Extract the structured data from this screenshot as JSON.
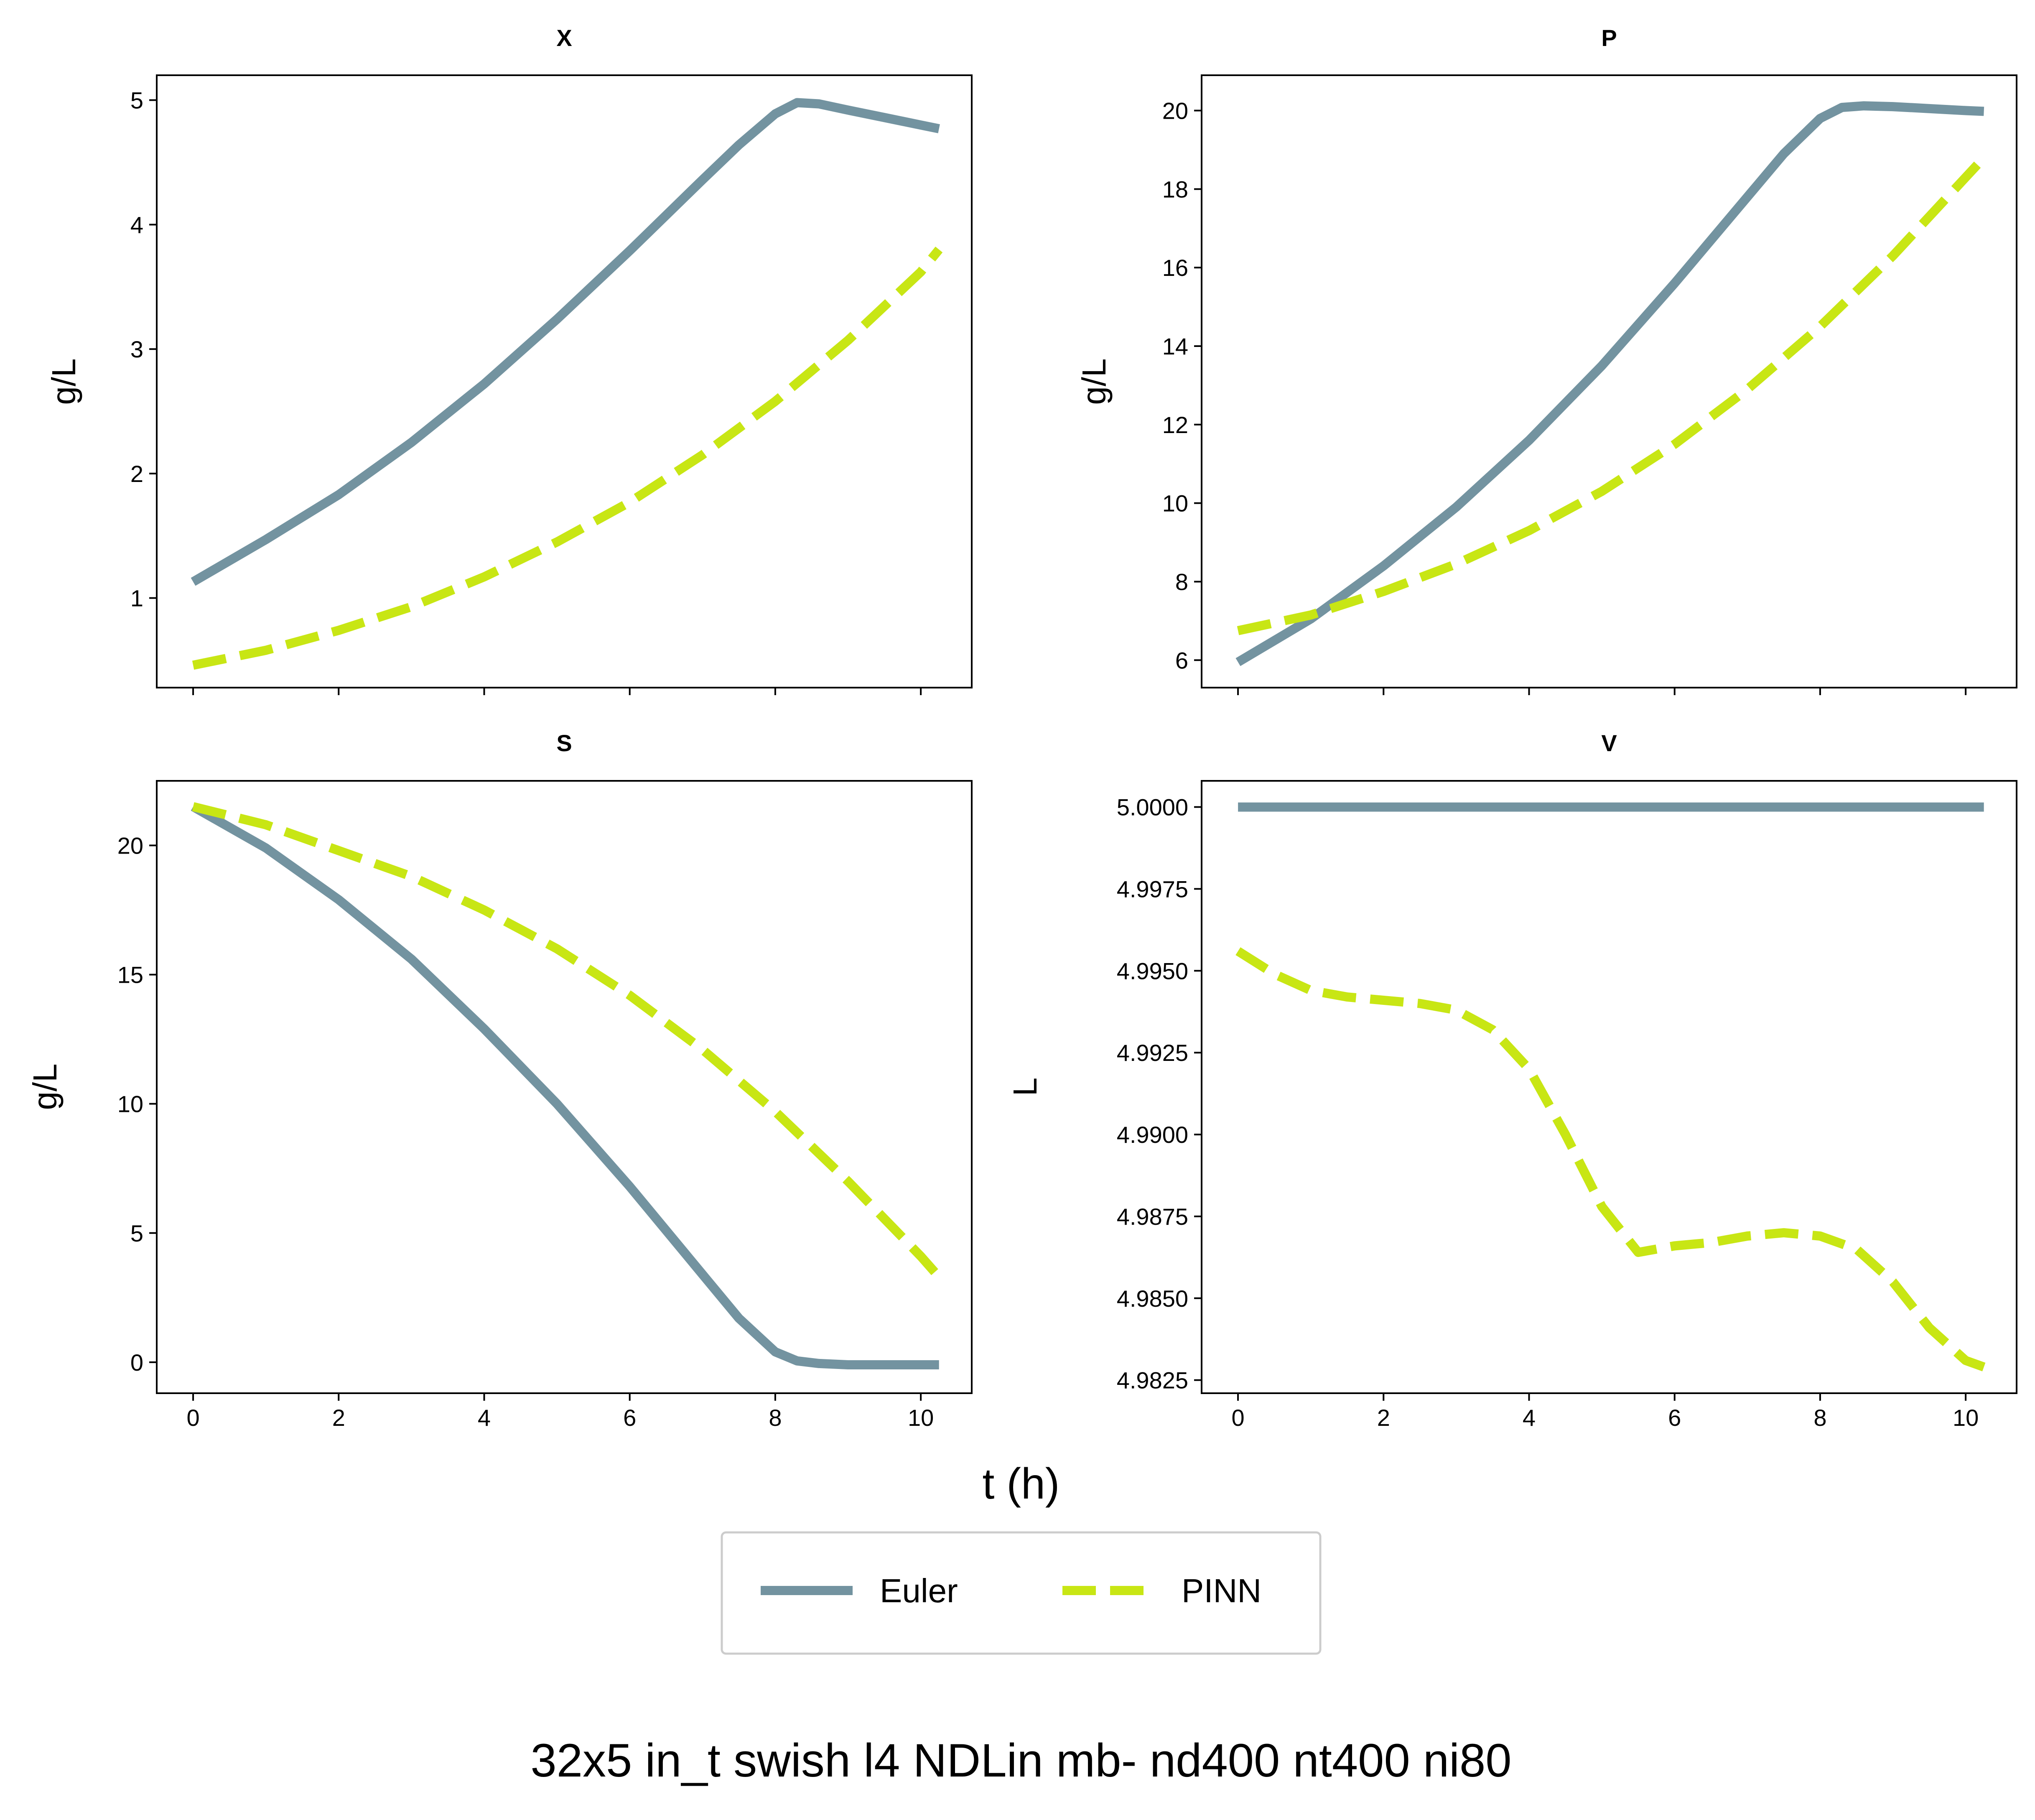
{
  "figure": {
    "suptitle": "32x5 in_t swish l4 NDLin mb- nd400 nt400 ni80",
    "xlabel": "t (h)",
    "colors": {
      "euler": "#7393a0",
      "pinn": "#c8e614"
    },
    "legend": {
      "placement": "bottom-center",
      "entries": [
        "Euler",
        "PINN"
      ]
    }
  },
  "chart_data": [
    {
      "type": "line",
      "title": "X",
      "ylabel": "g/L",
      "xlabel": "",
      "xlim": [
        -0.5,
        10.7
      ],
      "ylim": [
        0.28,
        5.2
      ],
      "xticks": [
        0,
        2,
        4,
        6,
        8,
        10
      ],
      "yticks": [
        1,
        2,
        3,
        4,
        5
      ],
      "show_xtick_labels": false,
      "series": [
        {
          "name": "Euler",
          "style": "solid",
          "x": [
            0,
            1,
            2,
            3,
            4,
            5,
            6,
            7,
            7.5,
            8,
            8.3,
            8.6,
            9,
            9.5,
            10,
            10.25
          ],
          "y": [
            1.13,
            1.47,
            1.83,
            2.25,
            2.72,
            3.24,
            3.79,
            4.36,
            4.64,
            4.89,
            4.98,
            4.97,
            4.92,
            4.86,
            4.8,
            4.77
          ]
        },
        {
          "name": "PINN",
          "style": "dashed",
          "x": [
            0,
            1,
            2,
            3,
            4,
            5,
            6,
            7,
            8,
            9,
            10,
            10.25
          ],
          "y": [
            0.46,
            0.58,
            0.74,
            0.93,
            1.17,
            1.45,
            1.77,
            2.15,
            2.58,
            3.07,
            3.62,
            3.8
          ]
        }
      ]
    },
    {
      "type": "line",
      "title": "P",
      "ylabel": "g/L",
      "xlabel": "",
      "xlim": [
        -0.5,
        10.7
      ],
      "ylim": [
        5.3,
        20.9
      ],
      "xticks": [
        0,
        2,
        4,
        6,
        8,
        10
      ],
      "yticks": [
        6,
        8,
        10,
        12,
        14,
        16,
        18,
        20
      ],
      "show_xtick_labels": false,
      "series": [
        {
          "name": "Euler",
          "style": "solid",
          "x": [
            0,
            1,
            2,
            3,
            4,
            5,
            6,
            7,
            7.5,
            8,
            8.3,
            8.6,
            9,
            9.5,
            10,
            10.25
          ],
          "y": [
            5.95,
            7.05,
            8.4,
            9.9,
            11.6,
            13.5,
            15.6,
            17.8,
            18.9,
            19.8,
            20.08,
            20.12,
            20.1,
            20.05,
            20.0,
            19.98
          ]
        },
        {
          "name": "PINN",
          "style": "dashed",
          "x": [
            0,
            1,
            2,
            3,
            4,
            5,
            6,
            7,
            8,
            9,
            10,
            10.25
          ],
          "y": [
            6.75,
            7.15,
            7.75,
            8.45,
            9.3,
            10.3,
            11.5,
            12.9,
            14.5,
            16.3,
            18.3,
            18.8
          ]
        }
      ]
    },
    {
      "type": "line",
      "title": "S",
      "ylabel": "g/L",
      "xlabel": "",
      "xlim": [
        -0.5,
        10.7
      ],
      "ylim": [
        -1.2,
        22.5
      ],
      "xticks": [
        0,
        2,
        4,
        6,
        8,
        10
      ],
      "yticks": [
        0,
        5,
        10,
        15,
        20
      ],
      "show_xtick_labels": true,
      "series": [
        {
          "name": "Euler",
          "style": "solid",
          "x": [
            0,
            1,
            2,
            3,
            4,
            5,
            6,
            7,
            7.5,
            8,
            8.3,
            8.6,
            9,
            9.5,
            10,
            10.25
          ],
          "y": [
            21.5,
            19.9,
            17.9,
            15.6,
            12.9,
            10.0,
            6.8,
            3.4,
            1.7,
            0.4,
            0.05,
            -0.05,
            -0.1,
            -0.1,
            -0.1,
            -0.1
          ]
        },
        {
          "name": "PINN",
          "style": "dashed",
          "x": [
            0,
            1,
            2,
            3,
            4,
            5,
            6,
            7,
            8,
            9,
            10,
            10.25
          ],
          "y": [
            21.5,
            20.8,
            19.8,
            18.8,
            17.5,
            16.0,
            14.2,
            12.1,
            9.7,
            7.0,
            4.1,
            3.3
          ]
        }
      ]
    },
    {
      "type": "line",
      "title": "V",
      "ylabel": "L",
      "xlabel": "",
      "xlim": [
        -0.5,
        10.7
      ],
      "ylim": [
        4.9821,
        5.0008
      ],
      "xticks": [
        0,
        2,
        4,
        6,
        8,
        10
      ],
      "yticks": [
        4.9825,
        4.985,
        4.9875,
        4.99,
        4.9925,
        4.995,
        4.9975,
        5.0
      ],
      "ytick_labels": [
        "4.9825",
        "4.9850",
        "4.9875",
        "4.9900",
        "4.9925",
        "4.9950",
        "4.9975",
        "5.0000"
      ],
      "show_xtick_labels": true,
      "series": [
        {
          "name": "Euler",
          "style": "solid",
          "x": [
            0,
            10.25
          ],
          "y": [
            5.0,
            5.0
          ]
        },
        {
          "name": "PINN",
          "style": "dashed",
          "x": [
            0,
            0.5,
            1,
            1.5,
            2,
            2.5,
            3,
            3.5,
            4,
            4.5,
            5,
            5.5,
            6,
            6.5,
            7,
            7.5,
            8,
            8.5,
            9,
            9.5,
            10,
            10.25
          ],
          "y": [
            4.9956,
            4.9949,
            4.9944,
            4.9942,
            4.9941,
            4.994,
            4.9938,
            4.9932,
            4.992,
            4.99,
            4.9878,
            4.9864,
            4.9866,
            4.9867,
            4.9869,
            4.987,
            4.9869,
            4.9865,
            4.9855,
            4.9841,
            4.9831,
            4.9829
          ]
        }
      ]
    }
  ]
}
